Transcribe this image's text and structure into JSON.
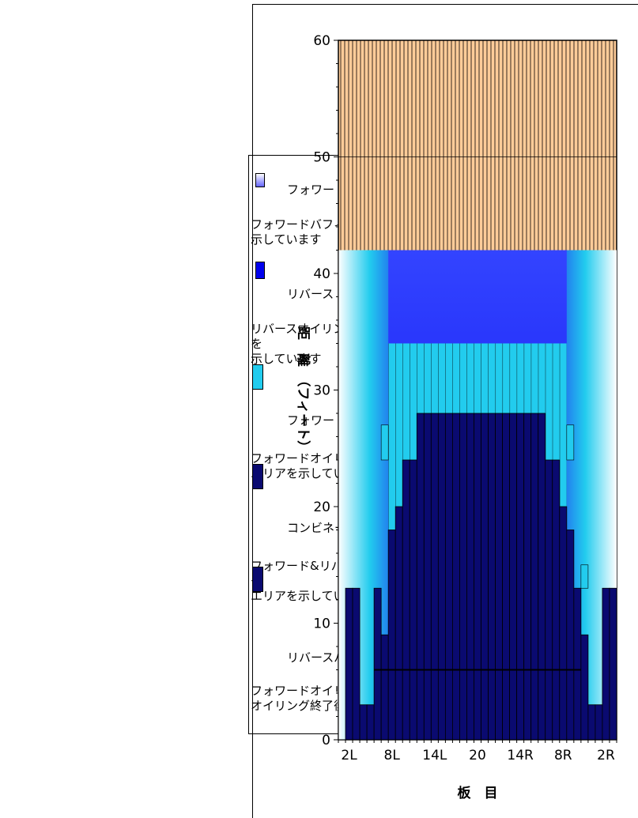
{
  "legend": {
    "items": [
      {
        "name": "フォワード　(バフ)",
        "description": "フォワードバフィングエリアを\n示しています",
        "swatch": "#c8c8ff"
      },
      {
        "name": "リバース　(オイル)",
        "description": "リバースオイリングのみのエリア\nを\n示しています",
        "swatch": "#0000ee"
      },
      {
        "name": "フォワード　(オイル)",
        "description": "フォワードオイリングのみの\nエリアを示しています",
        "swatch": "#22ccee"
      },
      {
        "name": "コンビネーション",
        "description": "フォワード&リバースのオイリン\nグ\nエリアを示しています",
        "swatch": "#0a0a70"
      },
      {
        "name": "リバースバフアウト",
        "description": "フォワードオイリング&リバース\nオイリング終了後のエリアを",
        "swatch": "#0a0a70"
      }
    ]
  },
  "chart_data": {
    "type": "area",
    "xlabel": "板　目",
    "ylabel": "距　離　（フィート）",
    "x_tick_labels": [
      "2L",
      "8L",
      "14L",
      "20",
      "14R",
      "8R",
      "2R"
    ],
    "y_ticks": [
      0,
      10,
      20,
      30,
      40,
      50,
      60
    ],
    "ylim": [
      0,
      60
    ],
    "boards": 39,
    "grid": "horizontal major",
    "colors": {
      "buff": "#ffcc99",
      "reverse_oil": "#0000ee",
      "forward_oil": "#22ccee",
      "combination": "#0a0a70",
      "edge_light": "#ffffff"
    },
    "series": [
      {
        "name": "フォワード　(バフ)",
        "range": [
          0,
          60
        ],
        "note": "all boards"
      },
      {
        "name": "リバース　(オイル)",
        "range": [
          0,
          42
        ],
        "boards": "7L-7R"
      },
      {
        "name": "フォワード　(オイル)",
        "range": [
          0,
          34
        ]
      },
      {
        "name": "コンビネーション",
        "values": [
          0,
          13,
          13,
          3,
          3,
          13,
          9,
          18,
          20,
          24,
          24,
          28,
          28,
          28,
          28,
          28,
          28,
          28,
          28,
          28,
          28,
          28,
          28,
          28,
          28,
          28,
          28,
          28,
          28,
          24,
          24,
          20,
          18,
          13,
          9,
          3,
          3,
          13,
          13
        ]
      },
      {
        "name": "リバースバフアウト",
        "value": 6
      }
    ]
  }
}
